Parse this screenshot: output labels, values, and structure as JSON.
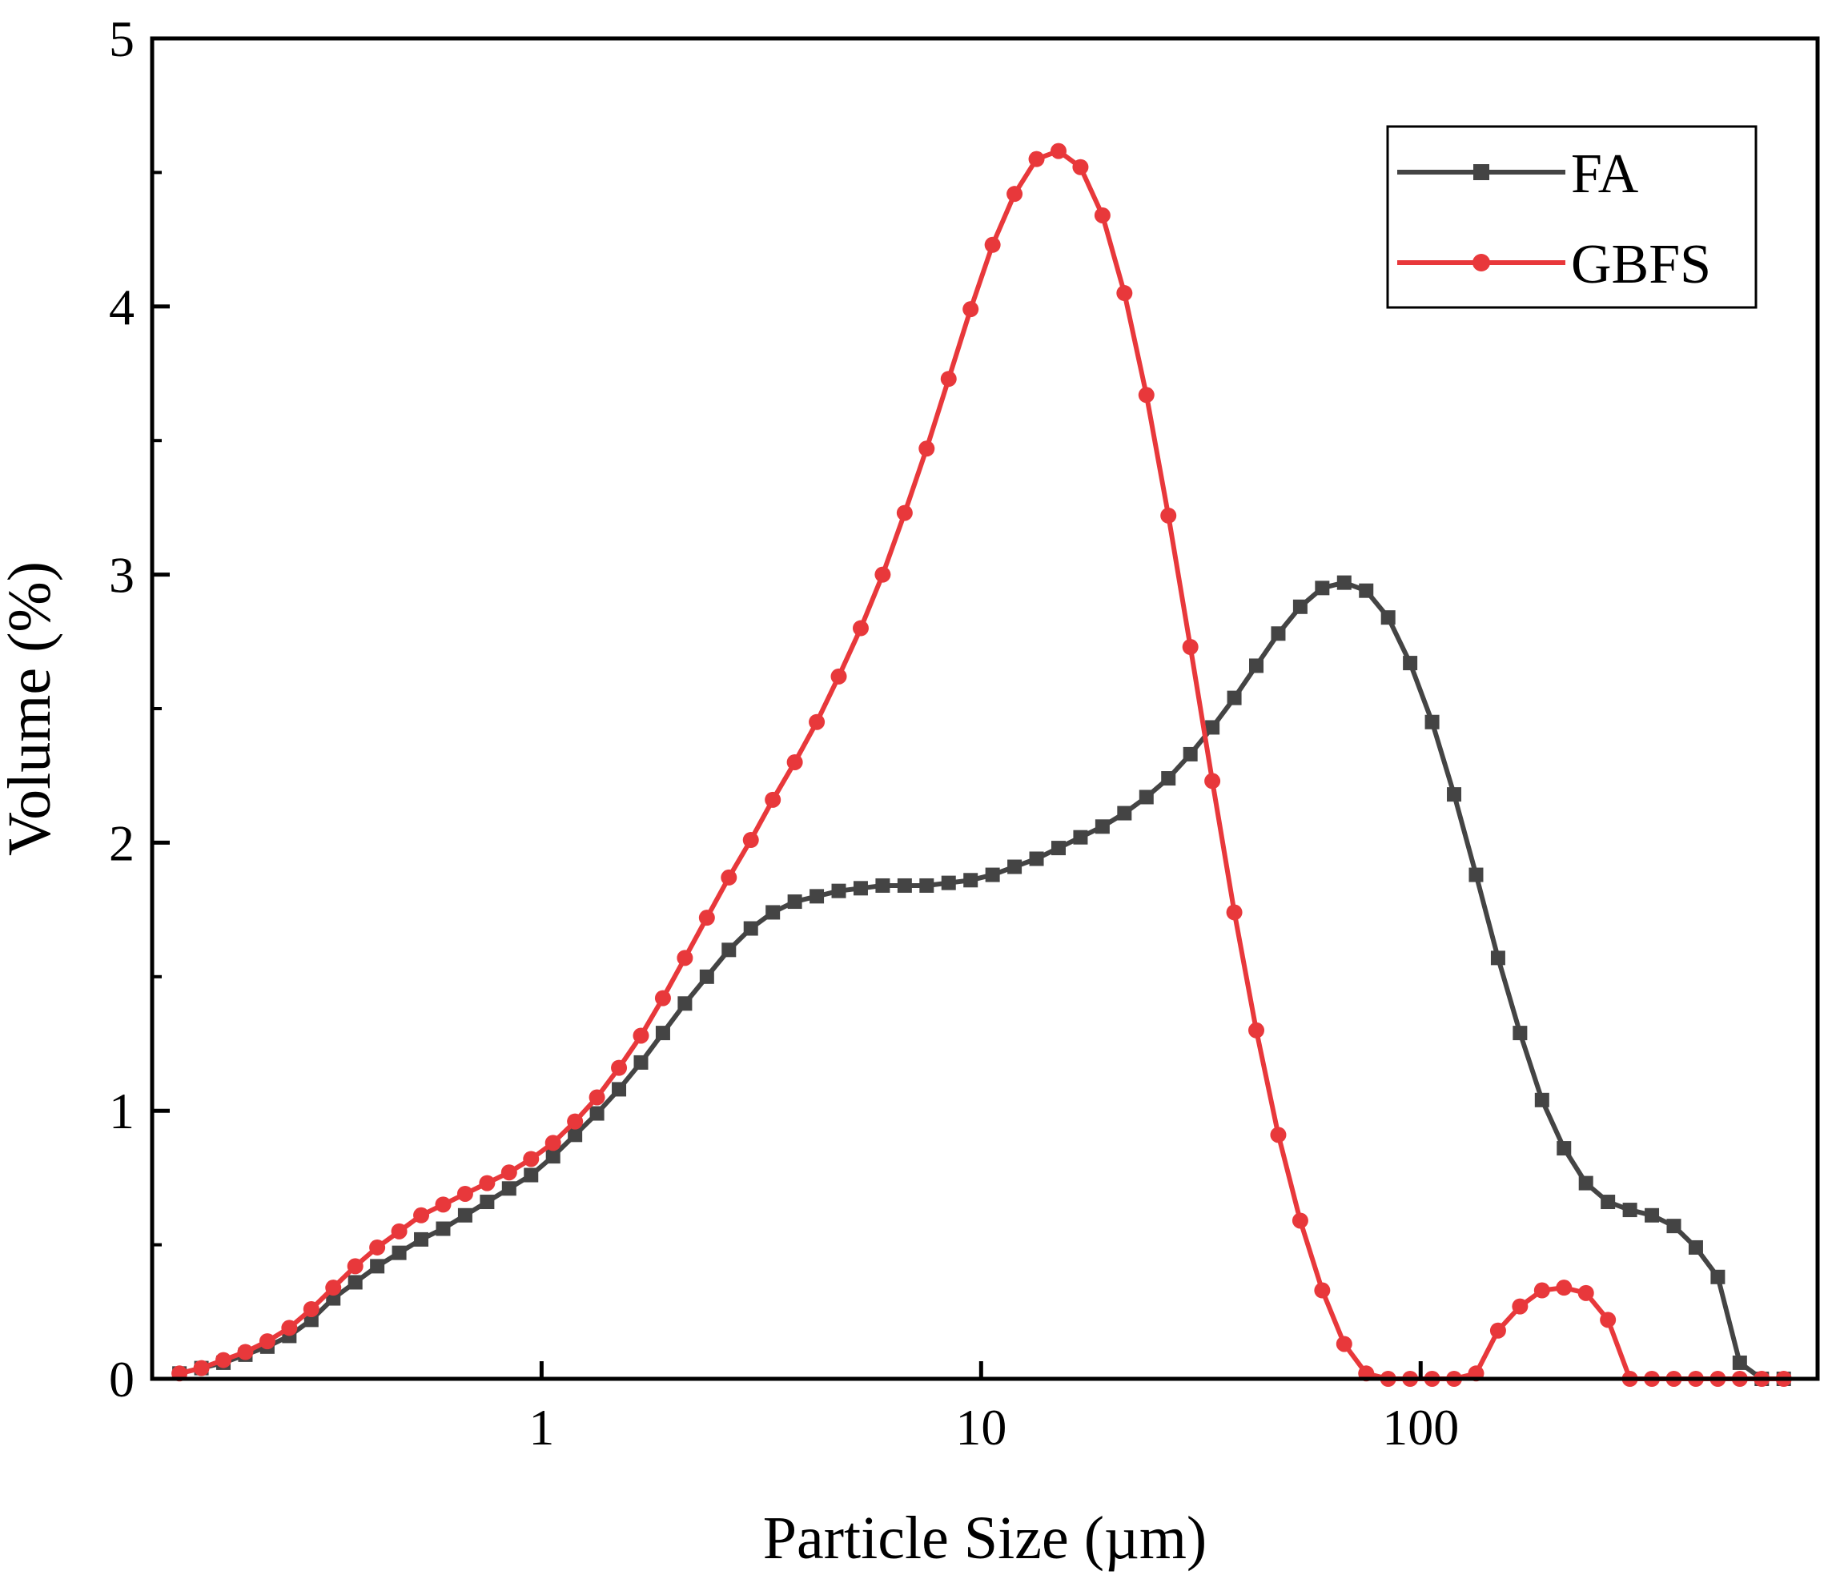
{
  "chart_data": {
    "type": "line",
    "title": "",
    "xlabel": "Particle Size (µm)",
    "ylabel": "Volume (%)",
    "xscale": "log",
    "xlim": [
      0.13,
      800
    ],
    "ylim": [
      0,
      5
    ],
    "xticks": [
      {
        "value": 1,
        "label": "1"
      },
      {
        "value": 10,
        "label": "10"
      },
      {
        "value": 100,
        "label": "100"
      }
    ],
    "yticks": [
      {
        "value": 0,
        "label": "0"
      },
      {
        "value": 1,
        "label": "1"
      },
      {
        "value": 2,
        "label": "2"
      },
      {
        "value": 3,
        "label": "3"
      },
      {
        "value": 4,
        "label": "4"
      },
      {
        "value": 5,
        "label": "5"
      }
    ],
    "legend_position": "top-right",
    "grid": false,
    "x_min": 0.15,
    "x_ratio": 1.1220185,
    "series": [
      {
        "name": "FA",
        "color": "#444444",
        "marker": "square",
        "values": [
          0.02,
          0.04,
          0.06,
          0.09,
          0.12,
          0.16,
          0.22,
          0.3,
          0.36,
          0.42,
          0.47,
          0.52,
          0.56,
          0.61,
          0.66,
          0.71,
          0.76,
          0.83,
          0.91,
          0.99,
          1.08,
          1.18,
          1.29,
          1.4,
          1.5,
          1.6,
          1.68,
          1.74,
          1.78,
          1.8,
          1.82,
          1.83,
          1.84,
          1.84,
          1.84,
          1.85,
          1.86,
          1.88,
          1.91,
          1.94,
          1.98,
          2.02,
          2.06,
          2.11,
          2.17,
          2.24,
          2.33,
          2.43,
          2.54,
          2.66,
          2.78,
          2.88,
          2.95,
          2.97,
          2.94,
          2.84,
          2.67,
          2.45,
          2.18,
          1.88,
          1.57,
          1.29,
          1.04,
          0.86,
          0.73,
          0.66,
          0.63,
          0.61,
          0.57,
          0.49,
          0.38,
          0.06,
          0.0,
          0.0
        ]
      },
      {
        "name": "GBFS",
        "color": "#e8383b",
        "marker": "circle",
        "values": [
          0.02,
          0.04,
          0.07,
          0.1,
          0.14,
          0.19,
          0.26,
          0.34,
          0.42,
          0.49,
          0.55,
          0.61,
          0.65,
          0.69,
          0.73,
          0.77,
          0.82,
          0.88,
          0.96,
          1.05,
          1.16,
          1.28,
          1.42,
          1.57,
          1.72,
          1.87,
          2.01,
          2.16,
          2.3,
          2.45,
          2.62,
          2.8,
          3.0,
          3.23,
          3.47,
          3.73,
          3.99,
          4.23,
          4.42,
          4.55,
          4.58,
          4.52,
          4.34,
          4.05,
          3.67,
          3.22,
          2.73,
          2.23,
          1.74,
          1.3,
          0.91,
          0.59,
          0.33,
          0.13,
          0.02,
          0.0,
          0.0,
          0.0,
          0.0,
          0.02,
          0.18,
          0.27,
          0.33,
          0.34,
          0.32,
          0.22,
          0.0,
          0.0,
          0.0,
          0.0,
          0.0,
          0.0,
          0.0,
          0.0
        ]
      }
    ]
  }
}
